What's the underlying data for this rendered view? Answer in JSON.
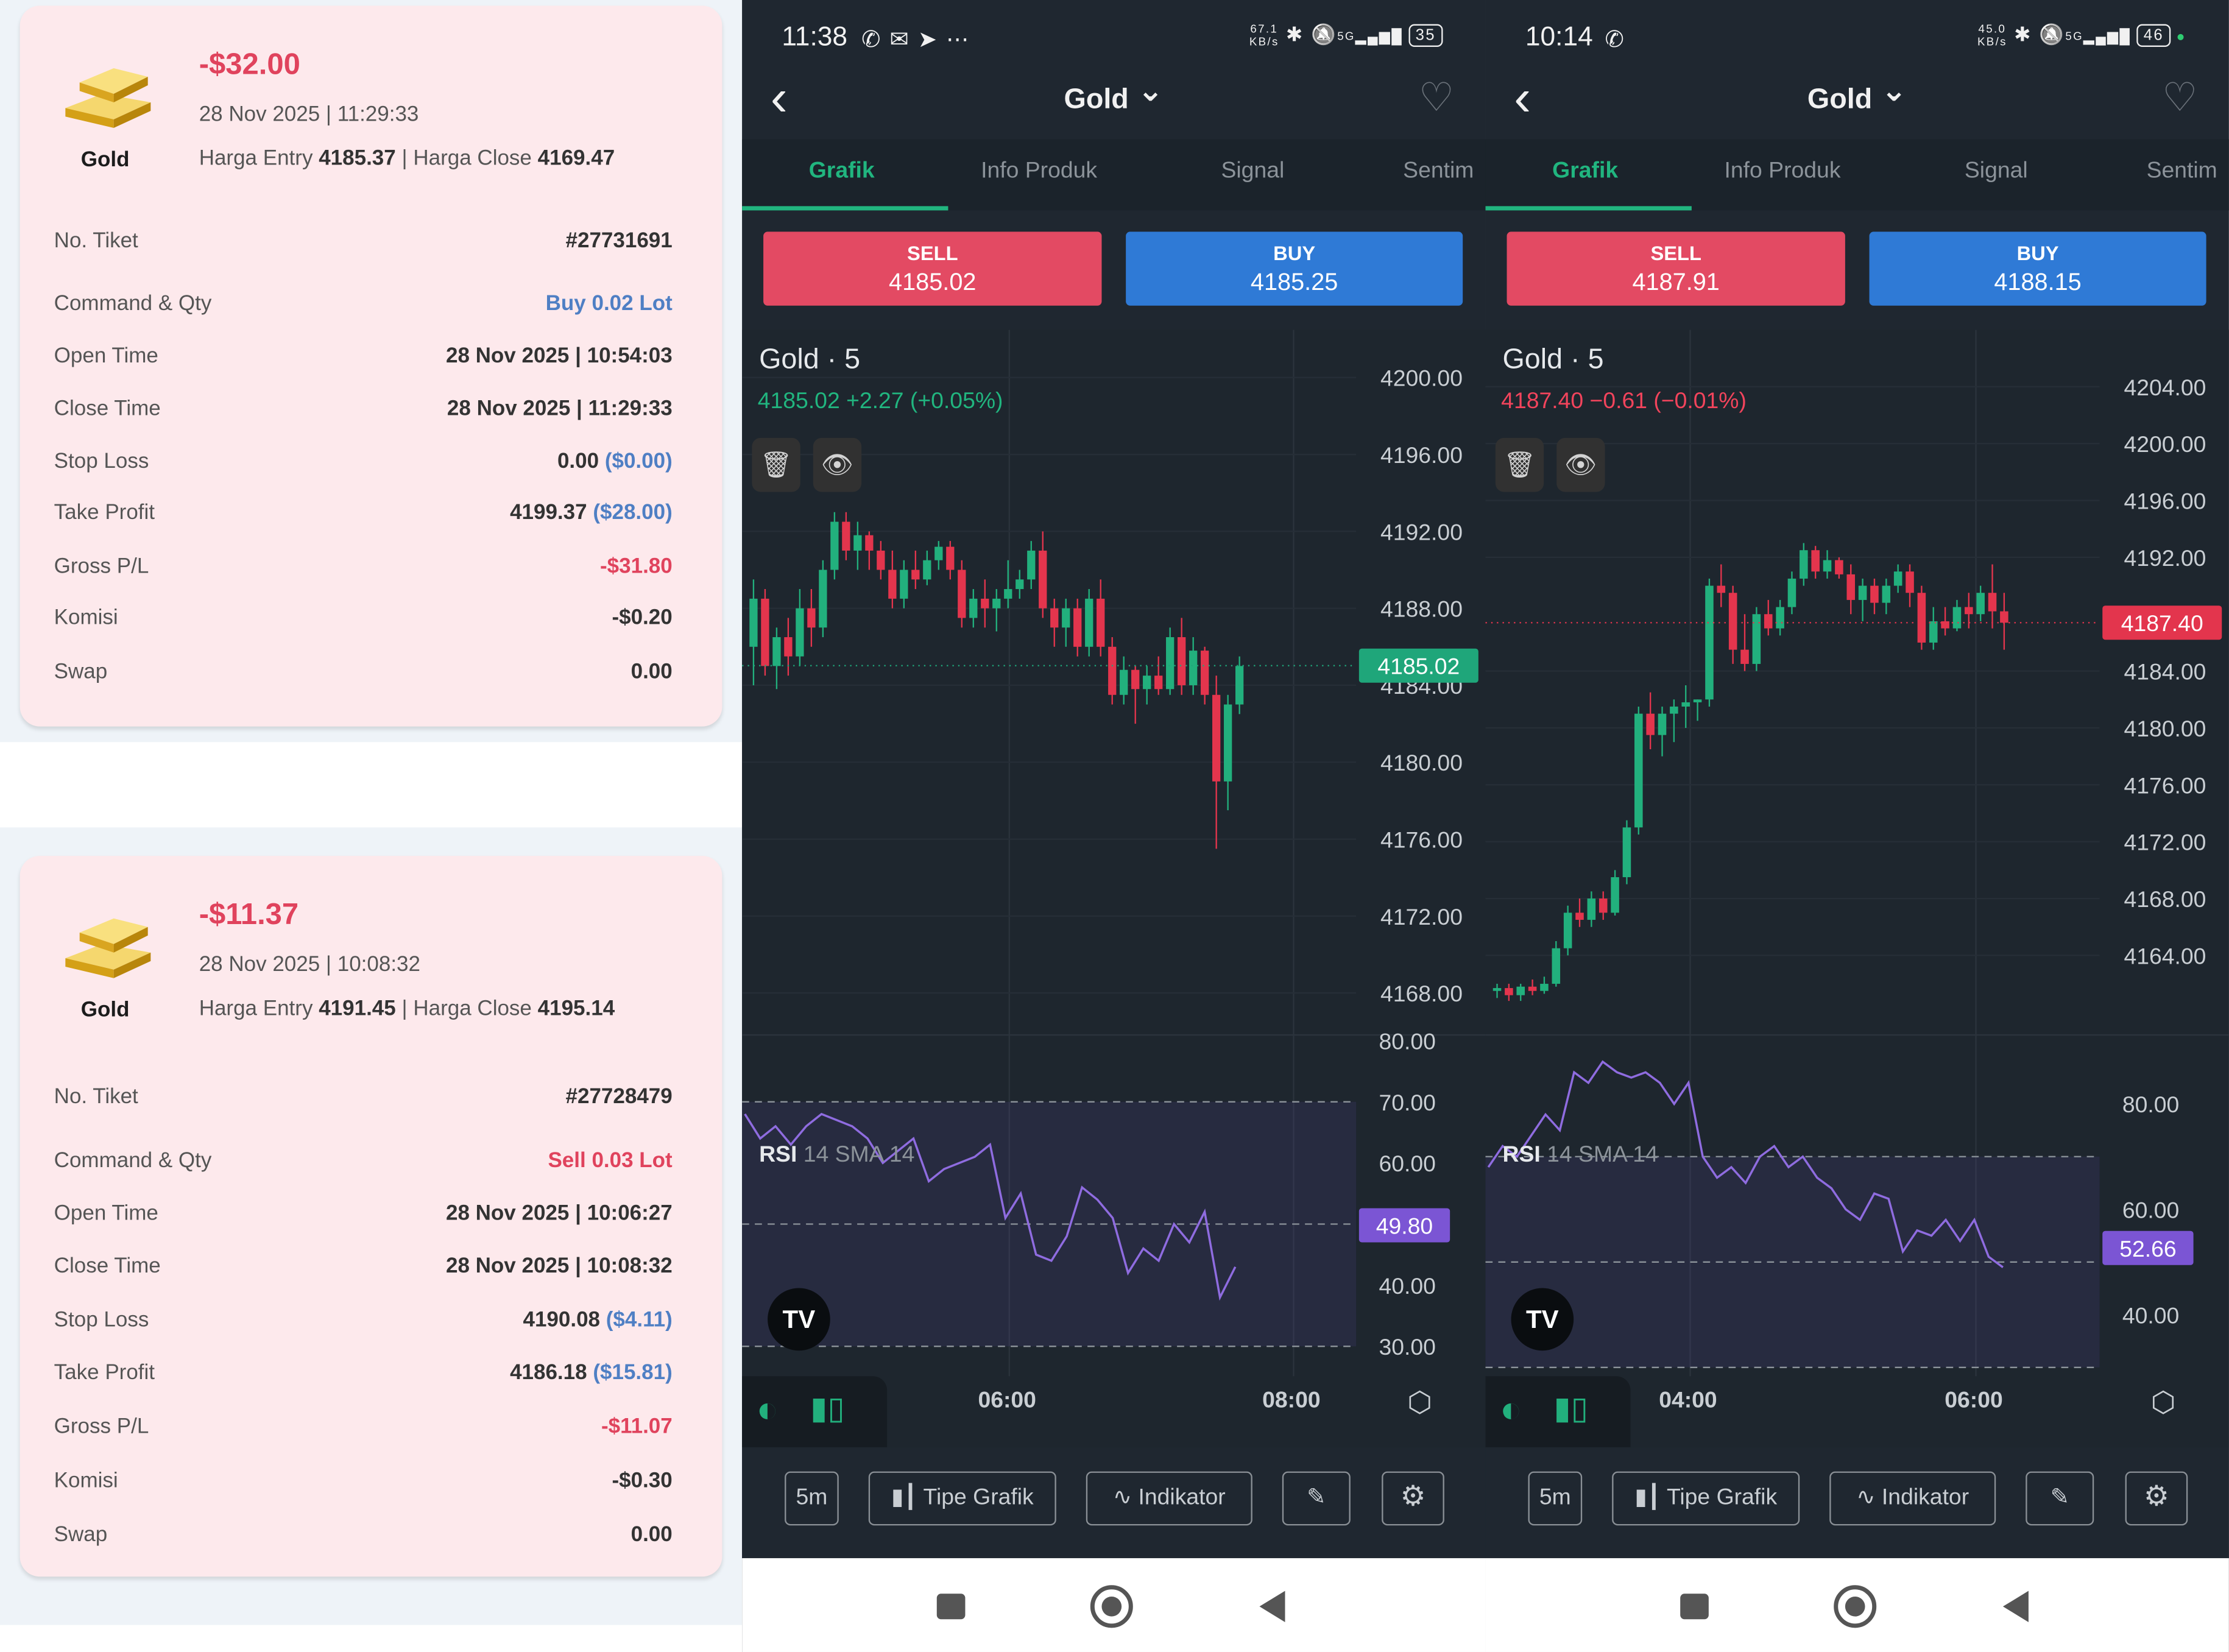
{
  "trades": [
    {
      "amount": "-$32.00",
      "datetime": "28 Nov 2025 | 11:29:33",
      "product": "Gold",
      "entry_label": "Harga Entry",
      "entry_value": "4185.37",
      "separator": "|",
      "close_label": "Harga Close",
      "close_value": "4169.47",
      "rows": [
        {
          "label": "No. Tiket",
          "value": "#27731691"
        },
        {
          "label": "Command & Qty",
          "value": "Buy 0.02 Lot",
          "color": "#4f7fc4"
        },
        {
          "label": "Open Time",
          "value": "28 Nov 2025 | 10:54:03"
        },
        {
          "label": "Close Time",
          "value": "28 Nov 2025 | 11:29:33"
        },
        {
          "label": "Stop Loss",
          "value": "0.00",
          "extra": "($0.00)"
        },
        {
          "label": "Take Profit",
          "value": "4199.37",
          "extra": "($28.00)"
        },
        {
          "label": "Gross P/L",
          "value": "-$31.80",
          "color": "#e0435d"
        },
        {
          "label": "Komisi",
          "value": "-$0.20"
        },
        {
          "label": "Swap",
          "value": "0.00"
        }
      ]
    },
    {
      "amount": "-$11.37",
      "datetime": "28 Nov 2025 | 10:08:32",
      "product": "Gold",
      "entry_label": "Harga Entry",
      "entry_value": "4191.45",
      "separator": "|",
      "close_label": "Harga Close",
      "close_value": "4195.14",
      "rows": [
        {
          "label": "No. Tiket",
          "value": "#27728479"
        },
        {
          "label": "Command & Qty",
          "value": "Sell 0.03 Lot",
          "color": "#e0435d"
        },
        {
          "label": "Open Time",
          "value": "28 Nov 2025 | 10:06:27"
        },
        {
          "label": "Close Time",
          "value": "28 Nov 2025 | 10:08:32"
        },
        {
          "label": "Stop Loss",
          "value": "4190.08",
          "extra": "($4.11)"
        },
        {
          "label": "Take Profit",
          "value": "4186.18",
          "extra": "($15.81)"
        },
        {
          "label": "Gross P/L",
          "value": "-$11.07",
          "color": "#e0435d"
        },
        {
          "label": "Komisi",
          "value": "-$0.30"
        },
        {
          "label": "Swap",
          "value": "0.00"
        }
      ]
    }
  ],
  "phones": [
    {
      "time": "11:38",
      "status_icons": "✆ ✉ ➤ ⋯",
      "net_speed": "67.1",
      "net_unit": "KB/s",
      "net_type": "5G",
      "battery": "35",
      "title": "Gold",
      "tabs": [
        "Grafik",
        "Info Produk",
        "Signal",
        "Sentim"
      ],
      "sell_label": "SELL",
      "sell_price": "4185.02",
      "buy_label": "BUY",
      "buy_price": "4185.25",
      "chart_title": "Gold · 5",
      "chart_quote": "4185.02  +2.27 (+0.05%)",
      "quote_color": "#21b57f",
      "price_ticks": [
        "4200.00",
        "4196.00",
        "4192.00",
        "4188.00",
        "4184.00",
        "4180.00",
        "4176.00",
        "4172.00",
        "4168.00"
      ],
      "last_price": "4185.02",
      "last_price_color": "#1fa67a",
      "rsi_label": "RSI",
      "rsi_params": "14 SMA 14",
      "rsi_ticks": [
        "80.00",
        "70.00",
        "60.00",
        "40.00",
        "30.00"
      ],
      "rsi_value": "49.80",
      "x_labels": [
        "06:00",
        "08:00"
      ],
      "toolbar": [
        "5m",
        "Tipe Grafik",
        "Indikator"
      ],
      "icons": {
        "back": "chevron-left-icon",
        "dropdown": "chevron-down-icon",
        "favorite": "heart-icon",
        "delete": "trash-icon",
        "visibility": "eye-icon",
        "logo": "tradingview-logo-icon",
        "settings": "gear-icon",
        "draw": "pencil-icon"
      },
      "chart_data": {
        "type": "candlestick",
        "x_ticks": [
          "06:00",
          "08:00"
        ],
        "y_range": [
          4167,
          4201
        ],
        "last": 4185.02,
        "ohlc": [
          [
            4186.0,
            4189.5,
            4184.0,
            4188.5
          ],
          [
            4188.5,
            4189.0,
            4184.5,
            4185.0
          ],
          [
            4185.0,
            4187.0,
            4183.8,
            4186.5
          ],
          [
            4186.5,
            4187.5,
            4184.5,
            4185.5
          ],
          [
            4185.5,
            4189.0,
            4185.0,
            4188.0
          ],
          [
            4188.0,
            4189.0,
            4186.0,
            4187.0
          ],
          [
            4187.0,
            4190.5,
            4186.5,
            4190.0
          ],
          [
            4190.0,
            4193.0,
            4189.5,
            4192.5
          ],
          [
            4192.5,
            4193.0,
            4190.5,
            4191.0
          ],
          [
            4191.0,
            4192.5,
            4190.0,
            4191.8
          ],
          [
            4191.8,
            4192.0,
            4190.0,
            4191.0
          ],
          [
            4191.0,
            4191.5,
            4189.5,
            4190.0
          ],
          [
            4190.0,
            4191.0,
            4188.0,
            4188.5
          ],
          [
            4188.5,
            4190.5,
            4188.0,
            4190.0
          ],
          [
            4190.0,
            4191.0,
            4189.0,
            4189.5
          ],
          [
            4189.5,
            4191.0,
            4189.2,
            4190.5
          ],
          [
            4190.5,
            4191.5,
            4190.0,
            4191.2
          ],
          [
            4191.2,
            4191.5,
            4189.5,
            4190.0
          ],
          [
            4190.0,
            4190.5,
            4187.0,
            4187.5
          ],
          [
            4187.5,
            4189.0,
            4187.0,
            4188.5
          ],
          [
            4188.5,
            4189.5,
            4187.0,
            4188.0
          ],
          [
            4188.0,
            4189.0,
            4186.8,
            4188.5
          ],
          [
            4188.5,
            4190.5,
            4188.0,
            4189.0
          ],
          [
            4189.0,
            4190.0,
            4188.5,
            4189.5
          ],
          [
            4189.5,
            4191.5,
            4189.0,
            4191.0
          ],
          [
            4191.0,
            4192.0,
            4187.5,
            4188.0
          ],
          [
            4188.0,
            4188.5,
            4186.0,
            4187.0
          ],
          [
            4187.0,
            4188.5,
            4186.0,
            4188.0
          ],
          [
            4188.0,
            4188.5,
            4185.5,
            4186.0
          ],
          [
            4186.0,
            4189.0,
            4185.5,
            4188.5
          ],
          [
            4188.5,
            4189.5,
            4185.5,
            4186.0
          ],
          [
            4186.0,
            4186.5,
            4183.0,
            4183.5
          ],
          [
            4183.5,
            4185.5,
            4183.0,
            4184.8
          ],
          [
            4184.8,
            4185.0,
            4182.0,
            4183.8
          ],
          [
            4183.8,
            4185.0,
            4183.0,
            4184.5
          ],
          [
            4184.5,
            4185.5,
            4183.5,
            4183.8
          ],
          [
            4183.8,
            4187.0,
            4183.5,
            4186.5
          ],
          [
            4186.5,
            4187.5,
            4183.5,
            4184.0
          ],
          [
            4184.0,
            4186.5,
            4183.5,
            4185.8
          ],
          [
            4185.8,
            4186.0,
            4183.0,
            4183.5
          ],
          [
            4183.5,
            4184.5,
            4175.5,
            4179.0
          ],
          [
            4179.0,
            4183.5,
            4177.5,
            4183.0
          ],
          [
            4183.0,
            4185.5,
            4182.5,
            4185.0
          ]
        ],
        "rsi": [
          68,
          64,
          66,
          63,
          66,
          68,
          67,
          66,
          64,
          60,
          62,
          64,
          57,
          59,
          60,
          61,
          63,
          51,
          55,
          45,
          44,
          48,
          56,
          54,
          51,
          42,
          46,
          44,
          50,
          47,
          52,
          38,
          43
        ],
        "rsi_range": [
          30,
          80
        ],
        "rsi_levels": [
          70,
          50,
          30
        ]
      }
    },
    {
      "time": "10:14",
      "status_icons": "✆",
      "net_speed": "45.0",
      "net_unit": "KB/s",
      "net_type": "5G",
      "battery": "46",
      "title": "Gold",
      "tabs": [
        "Grafik",
        "Info Produk",
        "Signal",
        "Sentim"
      ],
      "sell_label": "SELL",
      "sell_price": "4187.91",
      "buy_label": "BUY",
      "buy_price": "4188.15",
      "chart_title": "Gold · 5",
      "chart_quote": "4187.40  −0.61 (−0.01%)",
      "quote_color": "#f2445c",
      "price_ticks": [
        "4204.00",
        "4200.00",
        "4196.00",
        "4192.00",
        "4184.00",
        "4180.00",
        "4176.00",
        "4172.00",
        "4168.00",
        "4164.00"
      ],
      "last_price": "4187.40",
      "last_price_color": "#e3354d",
      "rsi_label": "RSI",
      "rsi_params": "14 SMA 14",
      "rsi_ticks": [
        "80.00",
        "60.00",
        "40.00"
      ],
      "rsi_value": "52.66",
      "x_labels": [
        "04:00",
        "06:00"
      ],
      "toolbar": [
        "5m",
        "Tipe Grafik",
        "Indikator"
      ],
      "icons": {
        "back": "chevron-left-icon",
        "dropdown": "chevron-down-icon",
        "favorite": "heart-icon",
        "delete": "trash-icon",
        "visibility": "eye-icon",
        "logo": "tradingview-logo-icon",
        "settings": "gear-icon",
        "draw": "pencil-icon"
      },
      "chart_data": {
        "type": "candlestick",
        "x_ticks": [
          "04:00",
          "06:00"
        ],
        "y_range": [
          4160,
          4206
        ],
        "last": 4187.4,
        "ohlc": [
          [
            4161.5,
            4162.0,
            4161.0,
            4161.7
          ],
          [
            4161.7,
            4162.0,
            4160.8,
            4161.2
          ],
          [
            4161.2,
            4162.0,
            4160.8,
            4161.8
          ],
          [
            4161.8,
            4162.3,
            4161.2,
            4161.5
          ],
          [
            4161.5,
            4162.5,
            4161.3,
            4162.0
          ],
          [
            4162.0,
            4165.0,
            4161.8,
            4164.5
          ],
          [
            4164.5,
            4167.5,
            4164.0,
            4167.0
          ],
          [
            4167.0,
            4168.0,
            4166.0,
            4166.5
          ],
          [
            4166.5,
            4168.5,
            4166.0,
            4168.0
          ],
          [
            4168.0,
            4168.5,
            4166.5,
            4167.0
          ],
          [
            4167.0,
            4170.0,
            4166.8,
            4169.5
          ],
          [
            4169.5,
            4173.5,
            4169.0,
            4173.0
          ],
          [
            4173.0,
            4181.5,
            4172.5,
            4181.0
          ],
          [
            4181.0,
            4182.5,
            4178.5,
            4179.5
          ],
          [
            4179.5,
            4181.5,
            4178.0,
            4181.0
          ],
          [
            4181.0,
            4182.0,
            4179.0,
            4181.5
          ],
          [
            4181.5,
            4183.0,
            4180.0,
            4181.8
          ],
          [
            4181.8,
            4182.0,
            4180.5,
            4182.0
          ],
          [
            4182.0,
            4190.5,
            4181.5,
            4190.0
          ],
          [
            4190.0,
            4191.5,
            4188.5,
            4189.5
          ],
          [
            4189.5,
            4190.0,
            4184.5,
            4185.5
          ],
          [
            4185.5,
            4188.0,
            4184.0,
            4184.5
          ],
          [
            4184.5,
            4188.5,
            4184.0,
            4188.0
          ],
          [
            4188.0,
            4189.0,
            4186.5,
            4187.0
          ],
          [
            4187.0,
            4189.0,
            4186.5,
            4188.5
          ],
          [
            4188.5,
            4191.0,
            4188.0,
            4190.5
          ],
          [
            4190.5,
            4193.0,
            4190.0,
            4192.5
          ],
          [
            4192.5,
            4192.8,
            4190.5,
            4191.0
          ],
          [
            4191.0,
            4192.5,
            4190.5,
            4191.8
          ],
          [
            4191.8,
            4192.0,
            4190.5,
            4190.8
          ],
          [
            4190.8,
            4191.5,
            4188.0,
            4189.0
          ],
          [
            4189.0,
            4190.5,
            4187.5,
            4190.0
          ],
          [
            4190.0,
            4190.5,
            4188.0,
            4188.8
          ],
          [
            4188.8,
            4190.5,
            4188.0,
            4190.0
          ],
          [
            4190.0,
            4191.5,
            4189.5,
            4191.0
          ],
          [
            4191.0,
            4191.5,
            4188.5,
            4189.5
          ],
          [
            4189.5,
            4190.0,
            4185.5,
            4186.0
          ],
          [
            4186.0,
            4188.5,
            4185.5,
            4187.5
          ],
          [
            4187.5,
            4188.5,
            4186.5,
            4187.0
          ],
          [
            4187.0,
            4189.0,
            4186.8,
            4188.5
          ],
          [
            4188.5,
            4189.5,
            4187.0,
            4188.0
          ],
          [
            4188.0,
            4190.0,
            4187.5,
            4189.5
          ],
          [
            4189.5,
            4191.5,
            4187.0,
            4188.2
          ],
          [
            4188.2,
            4189.5,
            4185.5,
            4187.4
          ]
        ],
        "rsi": [
          68,
          72,
          70,
          74,
          78,
          75,
          86,
          84,
          88,
          86,
          85,
          86,
          84,
          80,
          84,
          70,
          66,
          68,
          65,
          70,
          72,
          68,
          70,
          66,
          64,
          60,
          58,
          63,
          62,
          52,
          56,
          55,
          58,
          54,
          58,
          51,
          49
        ],
        "rsi_range": [
          34,
          92
        ],
        "rsi_levels": [
          70,
          50,
          30
        ]
      }
    }
  ],
  "nav": [
    "recent-apps",
    "home",
    "back"
  ]
}
